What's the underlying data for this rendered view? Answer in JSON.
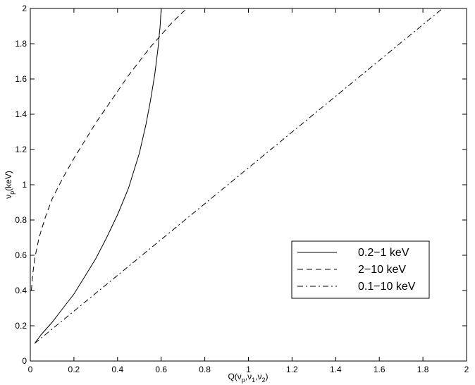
{
  "chart_data": {
    "type": "line",
    "xlabel_parts": [
      "Q(",
      "ν",
      "p",
      ",",
      "ν",
      "1",
      ",",
      "ν",
      "2",
      ")"
    ],
    "ylabel_parts": [
      "ν",
      "p",
      "(keV)"
    ],
    "xlim": [
      0,
      2
    ],
    "ylim": [
      0,
      2
    ],
    "xticks": [
      0,
      0.2,
      0.4,
      0.6,
      0.8,
      1,
      1.2,
      1.4,
      1.6,
      1.8,
      2
    ],
    "xtick_labels": [
      "0",
      "0.2",
      "0.4",
      "0.6",
      "0.8",
      "1",
      "1.2",
      "1.4",
      "1.6",
      "1.8",
      "2"
    ],
    "yticks": [
      0,
      0.2,
      0.4,
      0.6,
      0.8,
      1,
      1.2,
      1.4,
      1.6,
      1.8,
      2
    ],
    "ytick_labels": [
      "0",
      "0.2",
      "0.4",
      "0.6",
      "0.8",
      "1",
      "1.2",
      "1.4",
      "1.6",
      "1.8",
      "2"
    ],
    "grid": false,
    "legend_position": "lower-right",
    "series": [
      {
        "name": "0.2−1 keV",
        "style": "solid",
        "color": "#000000",
        "x": [
          0.02,
          0.05,
          0.1,
          0.15,
          0.2,
          0.25,
          0.3,
          0.35,
          0.4,
          0.45,
          0.5,
          0.53,
          0.55,
          0.57,
          0.585,
          0.595,
          0.6
        ],
        "y": [
          0.1,
          0.15,
          0.22,
          0.3,
          0.38,
          0.48,
          0.58,
          0.7,
          0.83,
          0.98,
          1.18,
          1.34,
          1.47,
          1.62,
          1.77,
          1.9,
          2.0
        ]
      },
      {
        "name": "2−10 keV",
        "style": "dashed",
        "color": "#000000",
        "x": [
          0.005,
          0.01,
          0.02,
          0.04,
          0.07,
          0.1,
          0.15,
          0.2,
          0.25,
          0.3,
          0.35,
          0.4,
          0.45,
          0.5,
          0.55,
          0.6,
          0.65,
          0.7,
          0.72
        ],
        "y": [
          0.4,
          0.48,
          0.58,
          0.7,
          0.82,
          0.92,
          1.04,
          1.15,
          1.25,
          1.35,
          1.44,
          1.53,
          1.62,
          1.7,
          1.78,
          1.85,
          1.92,
          1.98,
          2.0
        ]
      },
      {
        "name": "0.1−10 keV",
        "style": "dashdot",
        "color": "#000000",
        "x": [
          0.02,
          1.89
        ],
        "y": [
          0.1,
          2.0
        ]
      }
    ]
  }
}
